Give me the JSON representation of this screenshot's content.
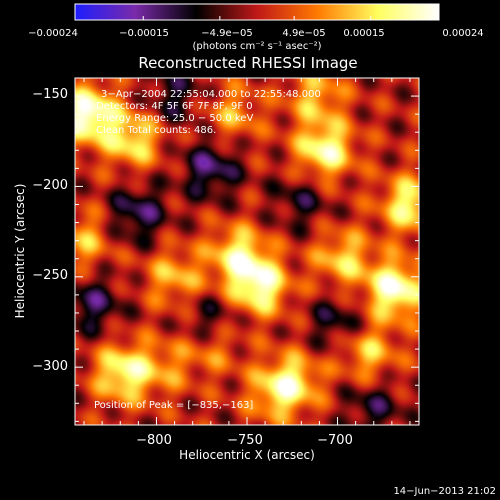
{
  "chart_data": {
    "type": "heatmap",
    "title": "Reconstructed RHESSI Image",
    "xlabel": "Heliocentric X (arcsec)",
    "ylabel": "Heliocentric Y (arcsec)",
    "xlim": [
      -845,
      -655
    ],
    "ylim": [
      -332,
      -140
    ],
    "x_ticks": [
      -800,
      -750,
      -700
    ],
    "x_tick_labels": [
      "−800",
      "−750",
      "−700"
    ],
    "y_ticks": [
      -150,
      -200,
      -250,
      -300
    ],
    "y_tick_labels": [
      "−150",
      "−200",
      "−250",
      "−300"
    ],
    "colorbar": {
      "ticks": [
        -0.00024,
        -0.00015,
        -4.9e-05,
        4.9e-05,
        0.00015,
        0.00024
      ],
      "tick_labels": [
        "−0.00024",
        "−0.00015",
        "−4.9e−05",
        "4.9e−05",
        "0.00015",
        "0.00024"
      ],
      "unit_label": "(photons cm⁻² s⁻¹ asec⁻²)",
      "range": [
        -0.00024,
        0.00024
      ],
      "colors": [
        "#1e1eff",
        "#7a2aa8",
        "#000000",
        "#c01818",
        "#ff7a00",
        "#ffff60",
        "#ffffff"
      ]
    },
    "annotations": {
      "time_range": "3−Apr−2004 22:55:04.000 to 22:55:48.000",
      "detectors": "Detectors: 4F 5F 6F 7F 8F, 9F 0",
      "energy": "Energy Range: 25.0 − 50.0 keV",
      "clean": "Clean    Total counts: 486.",
      "peak": "Position of Peak = [−835,−163]"
    },
    "peaks": [
      {
        "x": -838,
        "y": -160,
        "v": 0.00024
      },
      {
        "x": -813,
        "y": -174,
        "v": 0.00016
      },
      {
        "x": -707,
        "y": -180,
        "v": 0.0002
      },
      {
        "x": -660,
        "y": -210,
        "v": 0.00018
      },
      {
        "x": -755,
        "y": -238,
        "v": 0.00017
      },
      {
        "x": -743,
        "y": -255,
        "v": 0.00021
      },
      {
        "x": -668,
        "y": -257,
        "v": 0.00023
      },
      {
        "x": -790,
        "y": -250,
        "v": 0.00012
      },
      {
        "x": -697,
        "y": -240,
        "v": 0.00014
      },
      {
        "x": -818,
        "y": -303,
        "v": 0.00019
      },
      {
        "x": -725,
        "y": -308,
        "v": 0.00015
      },
      {
        "x": -769,
        "y": -287,
        "v": 0.00012
      },
      {
        "x": -683,
        "y": -292,
        "v": 0.00013
      },
      {
        "x": -712,
        "y": -150,
        "v": 0.00012
      },
      {
        "x": -758,
        "y": -160,
        "v": 0.0001
      },
      {
        "x": -840,
        "y": -230,
        "v": 0.00011
      },
      {
        "x": -735,
        "y": -315,
        "v": 0.0001
      },
      {
        "x": -795,
        "y": -300,
        "v": 8e-05
      }
    ],
    "troughs": [
      {
        "x": -770,
        "y": -190,
        "v": -0.00013
      },
      {
        "x": -810,
        "y": -215,
        "v": -0.00012
      },
      {
        "x": -770,
        "y": -277,
        "v": -0.00012
      },
      {
        "x": -835,
        "y": -265,
        "v": -0.00011
      },
      {
        "x": -700,
        "y": -275,
        "v": -9e-05
      },
      {
        "x": -680,
        "y": -322,
        "v": -9e-05
      },
      {
        "x": -720,
        "y": -208,
        "v": -8e-05
      },
      {
        "x": -790,
        "y": -150,
        "v": -9e-05
      }
    ]
  },
  "footer": {
    "timestamp": "14−Jun−2013 21:02"
  }
}
